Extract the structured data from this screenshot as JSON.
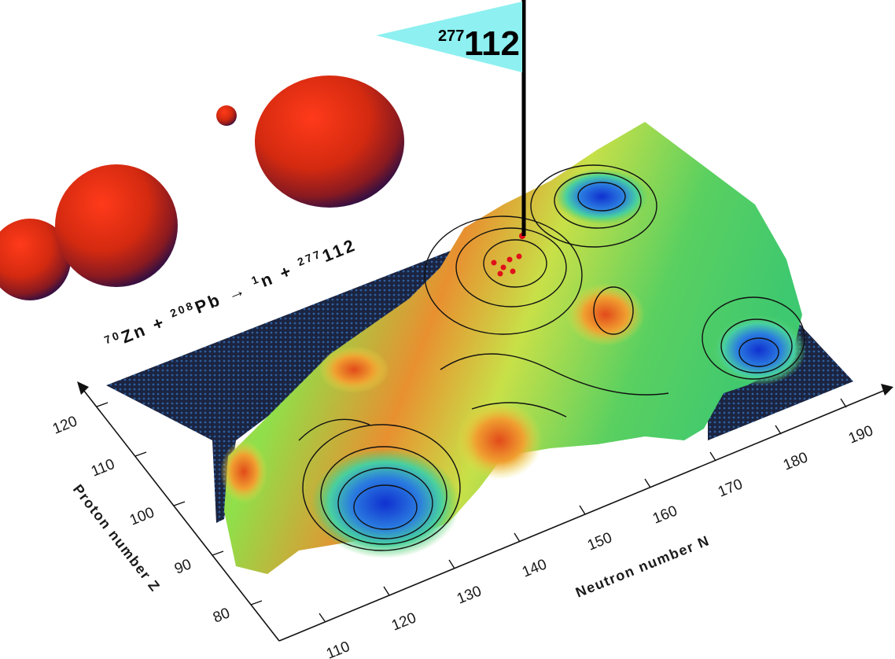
{
  "reaction": {
    "projectile_mass": "70",
    "projectile": "Zn",
    "plus1": "+",
    "target_mass": "208",
    "target": "Pb",
    "arrow": "→",
    "neutron_mass": "1",
    "neutron": "n",
    "plus2": "+",
    "product_mass": "277",
    "product": "112"
  },
  "flag": {
    "mass": "277",
    "element": "112"
  },
  "axes": {
    "neutron_label": "Neutron number N",
    "proton_label": "Proton number Z",
    "neutron_ticks": [
      "110",
      "120",
      "130",
      "140",
      "150",
      "160",
      "170",
      "180",
      "190"
    ],
    "proton_ticks": [
      "80",
      "90",
      "100",
      "110",
      "120"
    ]
  },
  "colors": {
    "deep_blue": "#1a4fd6",
    "green": "#3fd04a",
    "yellow": "#e8e84a",
    "orange": "#ee8a2a",
    "red_nucleus": "#d42a10",
    "flag_cyan": "#8ef0f0",
    "sea": "#1e2a4a"
  }
}
